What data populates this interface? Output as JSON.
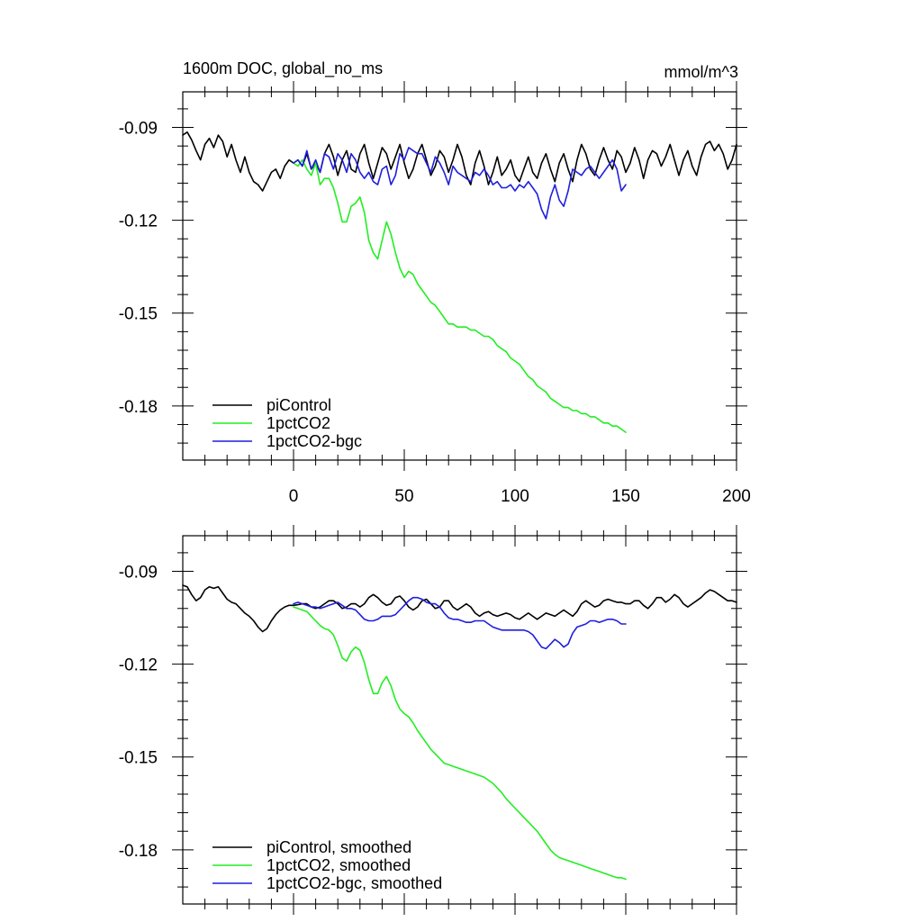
{
  "chart_data": [
    {
      "type": "line",
      "title": "1600m DOC, global_no_ms",
      "units_label": "mmol/m^3",
      "xlabel": "",
      "ylabel": "",
      "xlim": [
        -50,
        200
      ],
      "ylim": [
        -0.1975,
        -0.0785
      ],
      "x_ticks": [
        0,
        50,
        100,
        150,
        200
      ],
      "x_tick_labels": [
        "0",
        "50",
        "100",
        "150",
        "200"
      ],
      "y_ticks": [
        -0.09,
        -0.12,
        -0.15,
        -0.18
      ],
      "y_tick_labels": [
        "-0.09",
        "-0.12",
        "-0.15",
        "-0.18"
      ],
      "legend_position": "bottom-left",
      "series": [
        {
          "name": "piControl",
          "color": "#000000",
          "x": [
            -50,
            -48,
            -46,
            -44,
            -42,
            -40,
            -38,
            -36,
            -34,
            -32,
            -30,
            -28,
            -26,
            -24,
            -22,
            -20,
            -18,
            -16,
            -14,
            -12,
            -10,
            -8,
            -6,
            -4,
            -2,
            0,
            2,
            4,
            6,
            8,
            10,
            12,
            14,
            16,
            18,
            20,
            22,
            24,
            26,
            28,
            30,
            32,
            34,
            36,
            38,
            40,
            42,
            44,
            46,
            48,
            50,
            52,
            54,
            56,
            58,
            60,
            62,
            64,
            66,
            68,
            70,
            72,
            74,
            76,
            78,
            80,
            82,
            84,
            86,
            88,
            90,
            92,
            94,
            96,
            98,
            100,
            102,
            104,
            106,
            108,
            110,
            112,
            114,
            116,
            118,
            120,
            122,
            124,
            126,
            128,
            130,
            132,
            134,
            136,
            138,
            140,
            142,
            144,
            146,
            148,
            150,
            152,
            154,
            156,
            158,
            160,
            162,
            164,
            166,
            168,
            170,
            172,
            174,
            176,
            178,
            180,
            182,
            184,
            186,
            188,
            190,
            192,
            194,
            196,
            198,
            200
          ],
          "values": [
            -0.0925,
            -0.0915,
            -0.094,
            -0.0975,
            -0.1005,
            -0.0955,
            -0.0935,
            -0.0965,
            -0.0925,
            -0.0945,
            -0.0995,
            -0.0955,
            -0.1005,
            -0.1045,
            -0.0995,
            -0.1045,
            -0.1075,
            -0.1085,
            -0.1105,
            -0.1075,
            -0.1045,
            -0.1035,
            -0.1065,
            -0.1025,
            -0.1005,
            -0.1015,
            -0.1005,
            -0.1025,
            -0.0985,
            -0.1035,
            -0.1015,
            -0.1045,
            -0.0985,
            -0.0955,
            -0.0995,
            -0.1055,
            -0.1005,
            -0.0975,
            -0.1035,
            -0.1045,
            -0.0985,
            -0.0955,
            -0.1015,
            -0.1065,
            -0.1015,
            -0.0965,
            -0.0985,
            -0.1035,
            -0.0995,
            -0.0955,
            -0.1015,
            -0.1065,
            -0.1035,
            -0.0985,
            -0.0955,
            -0.1005,
            -0.1055,
            -0.1025,
            -0.0975,
            -0.0995,
            -0.1045,
            -0.1005,
            -0.0955,
            -0.0995,
            -0.1055,
            -0.1085,
            -0.1015,
            -0.0975,
            -0.1025,
            -0.1085,
            -0.1045,
            -0.0995,
            -0.1055,
            -0.1035,
            -0.1005,
            -0.1055,
            -0.1075,
            -0.1035,
            -0.0995,
            -0.1045,
            -0.1065,
            -0.1015,
            -0.0985,
            -0.1035,
            -0.1075,
            -0.1015,
            -0.0985,
            -0.1035,
            -0.1075,
            -0.1005,
            -0.0955,
            -0.0985,
            -0.1035,
            -0.1055,
            -0.1005,
            -0.0965,
            -0.1005,
            -0.1035,
            -0.0975,
            -0.0995,
            -0.1045,
            -0.1015,
            -0.0965,
            -0.1005,
            -0.1065,
            -0.1005,
            -0.0975,
            -0.0985,
            -0.1025,
            -0.0995,
            -0.0955,
            -0.1005,
            -0.1055,
            -0.1005,
            -0.0975,
            -0.1025,
            -0.1055,
            -0.0995,
            -0.0955,
            -0.0945,
            -0.0975,
            -0.0955,
            -0.0985,
            -0.1035,
            -0.1005,
            -0.0955
          ],
          "smoothed_values": [
            -0.0945,
            -0.095,
            -0.0975,
            -0.0995,
            -0.0985,
            -0.096,
            -0.095,
            -0.0955,
            -0.095,
            -0.097,
            -0.099,
            -0.1,
            -0.1005,
            -0.102,
            -0.1035,
            -0.1045,
            -0.106,
            -0.108,
            -0.1095,
            -0.1085,
            -0.106,
            -0.104,
            -0.1025,
            -0.1015,
            -0.101,
            -0.101,
            -0.1008,
            -0.1005,
            -0.1005,
            -0.1015,
            -0.102,
            -0.1015,
            -0.1005,
            -0.0995,
            -0.0995,
            -0.1005,
            -0.102,
            -0.1015,
            -0.1005,
            -0.1005,
            -0.1015,
            -0.1005,
            -0.0985,
            -0.0975,
            -0.0985,
            -0.1,
            -0.101,
            -0.1005,
            -0.0985,
            -0.098,
            -0.0995,
            -0.1015,
            -0.1025,
            -0.1015,
            -0.0995,
            -0.099,
            -0.1005,
            -0.102,
            -0.1015,
            -0.0995,
            -0.0995,
            -0.1015,
            -0.1025,
            -0.1015,
            -0.1005,
            -0.1015,
            -0.1035,
            -0.1045,
            -0.1035,
            -0.103,
            -0.104,
            -0.1045,
            -0.104,
            -0.1035,
            -0.104,
            -0.105,
            -0.1055,
            -0.1045,
            -0.1035,
            -0.1045,
            -0.1055,
            -0.1045,
            -0.1035,
            -0.104,
            -0.1045,
            -0.1035,
            -0.1025,
            -0.1035,
            -0.1045,
            -0.103,
            -0.1005,
            -0.0995,
            -0.1005,
            -0.1015,
            -0.101,
            -0.0995,
            -0.099,
            -0.0995,
            -0.1,
            -0.1,
            -0.1005,
            -0.1005,
            -0.0995,
            -0.0995,
            -0.101,
            -0.102,
            -0.1005,
            -0.0985,
            -0.0985,
            -0.1,
            -0.099,
            -0.0975,
            -0.0985,
            -0.1005,
            -0.1015,
            -0.1005,
            -0.0995,
            -0.0985,
            -0.097,
            -0.096,
            -0.0965,
            -0.0975,
            -0.0985,
            -0.0995,
            -0.0995,
            -0.1
          ]
        },
        {
          "name": "1pctCO2",
          "color": "#22ee22",
          "x": [
            0,
            2,
            4,
            6,
            8,
            10,
            12,
            14,
            16,
            18,
            20,
            22,
            24,
            26,
            28,
            30,
            32,
            34,
            36,
            38,
            40,
            42,
            44,
            46,
            48,
            50,
            52,
            54,
            56,
            58,
            60,
            62,
            64,
            66,
            68,
            70,
            72,
            74,
            76,
            78,
            80,
            82,
            84,
            86,
            88,
            90,
            92,
            94,
            96,
            98,
            100,
            102,
            104,
            106,
            108,
            110,
            112,
            114,
            116,
            118,
            120,
            122,
            124,
            126,
            128,
            130,
            132,
            134,
            136,
            138,
            140,
            142,
            144,
            146,
            148,
            150
          ],
          "values": [
            -0.1015,
            -0.1025,
            -0.1005,
            -0.1035,
            -0.1055,
            -0.1015,
            -0.1085,
            -0.1065,
            -0.1065,
            -0.1095,
            -0.1145,
            -0.1205,
            -0.1205,
            -0.1155,
            -0.1145,
            -0.1125,
            -0.1175,
            -0.1265,
            -0.1305,
            -0.1325,
            -0.1265,
            -0.1205,
            -0.1245,
            -0.1305,
            -0.1355,
            -0.1385,
            -0.1365,
            -0.1375,
            -0.1405,
            -0.1425,
            -0.1445,
            -0.1465,
            -0.1475,
            -0.1495,
            -0.1515,
            -0.1535,
            -0.1535,
            -0.1545,
            -0.1545,
            -0.1545,
            -0.1555,
            -0.1555,
            -0.1565,
            -0.1575,
            -0.1575,
            -0.1585,
            -0.1605,
            -0.1615,
            -0.1625,
            -0.1645,
            -0.1655,
            -0.1665,
            -0.1685,
            -0.1705,
            -0.1715,
            -0.1735,
            -0.1745,
            -0.1755,
            -0.1775,
            -0.1785,
            -0.1795,
            -0.1805,
            -0.1805,
            -0.1815,
            -0.1815,
            -0.1825,
            -0.1825,
            -0.1835,
            -0.1835,
            -0.1845,
            -0.1855,
            -0.1855,
            -0.1865,
            -0.1865,
            -0.1875,
            -0.1885
          ],
          "smoothed_values": [
            -0.1015,
            -0.102,
            -0.1025,
            -0.103,
            -0.1045,
            -0.106,
            -0.1075,
            -0.1085,
            -0.109,
            -0.1105,
            -0.114,
            -0.118,
            -0.119,
            -0.116,
            -0.1145,
            -0.1155,
            -0.1195,
            -0.125,
            -0.1295,
            -0.1295,
            -0.126,
            -0.124,
            -0.127,
            -0.1315,
            -0.1345,
            -0.136,
            -0.137,
            -0.139,
            -0.1415,
            -0.1435,
            -0.1455,
            -0.1475,
            -0.149,
            -0.1505,
            -0.152,
            -0.1525,
            -0.153,
            -0.1535,
            -0.154,
            -0.1545,
            -0.155,
            -0.1555,
            -0.156,
            -0.1565,
            -0.1575,
            -0.1585,
            -0.16,
            -0.1615,
            -0.1635,
            -0.165,
            -0.1665,
            -0.168,
            -0.1695,
            -0.171,
            -0.1725,
            -0.174,
            -0.176,
            -0.178,
            -0.18,
            -0.1815,
            -0.1825,
            -0.183,
            -0.1835,
            -0.184,
            -0.1845,
            -0.185,
            -0.1855,
            -0.186,
            -0.1865,
            -0.187,
            -0.1875,
            -0.188,
            -0.1885,
            -0.189,
            -0.189,
            -0.1895
          ]
        },
        {
          "name": "1pctCO2-bgc",
          "color": "#1f1fdd",
          "x": [
            0,
            2,
            4,
            6,
            8,
            10,
            12,
            14,
            16,
            18,
            20,
            22,
            24,
            26,
            28,
            30,
            32,
            34,
            36,
            38,
            40,
            42,
            44,
            46,
            48,
            50,
            52,
            54,
            56,
            58,
            60,
            62,
            64,
            66,
            68,
            70,
            72,
            74,
            76,
            78,
            80,
            82,
            84,
            86,
            88,
            90,
            92,
            94,
            96,
            98,
            100,
            102,
            104,
            106,
            108,
            110,
            112,
            114,
            116,
            118,
            120,
            122,
            124,
            126,
            128,
            130,
            132,
            134,
            136,
            138,
            140,
            142,
            144,
            146,
            148,
            150
          ],
          "values": [
            -0.1015,
            -0.1005,
            -0.1025,
            -0.0975,
            -0.1035,
            -0.1005,
            -0.1045,
            -0.0985,
            -0.0995,
            -0.1035,
            -0.0985,
            -0.1005,
            -0.1045,
            -0.0985,
            -0.1005,
            -0.1045,
            -0.1065,
            -0.1045,
            -0.1075,
            -0.1085,
            -0.1035,
            -0.1025,
            -0.1085,
            -0.1055,
            -0.0985,
            -0.1005,
            -0.0965,
            -0.0975,
            -0.0985,
            -0.0985,
            -0.1015,
            -0.1045,
            -0.0995,
            -0.1015,
            -0.1045,
            -0.1085,
            -0.1025,
            -0.1045,
            -0.1055,
            -0.1065,
            -0.1075,
            -0.1045,
            -0.1055,
            -0.1035,
            -0.1055,
            -0.1085,
            -0.1075,
            -0.1095,
            -0.1095,
            -0.1085,
            -0.1105,
            -0.1085,
            -0.1095,
            -0.1075,
            -0.1095,
            -0.1115,
            -0.1165,
            -0.1195,
            -0.1125,
            -0.1085,
            -0.1135,
            -0.1155,
            -0.1105,
            -0.1035,
            -0.1045,
            -0.1055,
            -0.1035,
            -0.1025,
            -0.1045,
            -0.1065,
            -0.1045,
            -0.1025,
            -0.1005,
            -0.1035,
            -0.1105,
            -0.1085
          ],
          "smoothed_values": [
            -0.1005,
            -0.1,
            -0.1005,
            -0.101,
            -0.1015,
            -0.1015,
            -0.102,
            -0.1015,
            -0.101,
            -0.1005,
            -0.1,
            -0.101,
            -0.102,
            -0.102,
            -0.1025,
            -0.104,
            -0.1055,
            -0.106,
            -0.106,
            -0.1055,
            -0.1045,
            -0.1045,
            -0.1045,
            -0.104,
            -0.1025,
            -0.101,
            -0.0995,
            -0.0985,
            -0.0985,
            -0.099,
            -0.1,
            -0.1005,
            -0.1005,
            -0.1015,
            -0.1035,
            -0.105,
            -0.1055,
            -0.1055,
            -0.106,
            -0.1065,
            -0.1065,
            -0.106,
            -0.106,
            -0.106,
            -0.107,
            -0.108,
            -0.1085,
            -0.109,
            -0.109,
            -0.109,
            -0.109,
            -0.109,
            -0.109,
            -0.1095,
            -0.1105,
            -0.1125,
            -0.1145,
            -0.115,
            -0.1135,
            -0.112,
            -0.113,
            -0.1145,
            -0.1135,
            -0.11,
            -0.108,
            -0.1075,
            -0.107,
            -0.106,
            -0.106,
            -0.1065,
            -0.106,
            -0.1055,
            -0.1055,
            -0.106,
            -0.107,
            -0.107
          ]
        }
      ]
    },
    {
      "type": "line",
      "title": "",
      "xlim": [
        -50,
        200
      ],
      "ylim": [
        -0.1975,
        -0.0785
      ],
      "y_ticks": [
        -0.09,
        -0.12,
        -0.15,
        -0.18
      ],
      "y_tick_labels": [
        "-0.09",
        "-0.12",
        "-0.15",
        "-0.18"
      ],
      "legend_position": "bottom-left",
      "series_names": [
        "piControl, smoothed",
        "1pctCO2, smoothed",
        "1pctCO2-bgc, smoothed"
      ]
    }
  ]
}
